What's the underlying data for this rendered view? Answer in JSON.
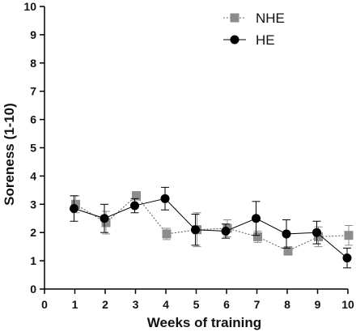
{
  "chart_data": {
    "type": "line",
    "xlabel": "Weeks of training",
    "ylabel": "Soreness  (1-10)",
    "xlim": [
      0,
      10
    ],
    "ylim": [
      0,
      10
    ],
    "x_ticks": [
      "0",
      "1",
      "2",
      "3",
      "4",
      "5",
      "6",
      "7",
      "8",
      "9",
      "10"
    ],
    "y_ticks": [
      "0",
      "1",
      "2",
      "3",
      "4",
      "5",
      "6",
      "7",
      "8",
      "9",
      "10"
    ],
    "grid": false,
    "legend_position": "top-right",
    "series": [
      {
        "name": "NHE",
        "marker": "square",
        "line": "dotted",
        "color": "#8c8c8c",
        "x": [
          1,
          2,
          3,
          4,
          5,
          6,
          7,
          8,
          9,
          10
        ],
        "y": [
          3.0,
          2.35,
          3.3,
          1.95,
          2.1,
          2.15,
          1.85,
          1.35,
          1.85,
          1.9
        ],
        "err": [
          0.3,
          0.4,
          0.15,
          0.2,
          0.6,
          0.3,
          0.2,
          0.15,
          0.35,
          0.35
        ]
      },
      {
        "name": "HE",
        "marker": "circle",
        "line": "solid",
        "color": "#000000",
        "x": [
          1,
          2,
          3,
          4,
          5,
          6,
          7,
          8,
          9,
          10
        ],
        "y": [
          2.85,
          2.5,
          2.95,
          3.2,
          2.1,
          2.05,
          2.5,
          1.95,
          2.0,
          1.1
        ],
        "err": [
          0.45,
          0.5,
          0.25,
          0.4,
          0.55,
          0.25,
          0.6,
          0.5,
          0.4,
          0.35
        ]
      }
    ]
  }
}
